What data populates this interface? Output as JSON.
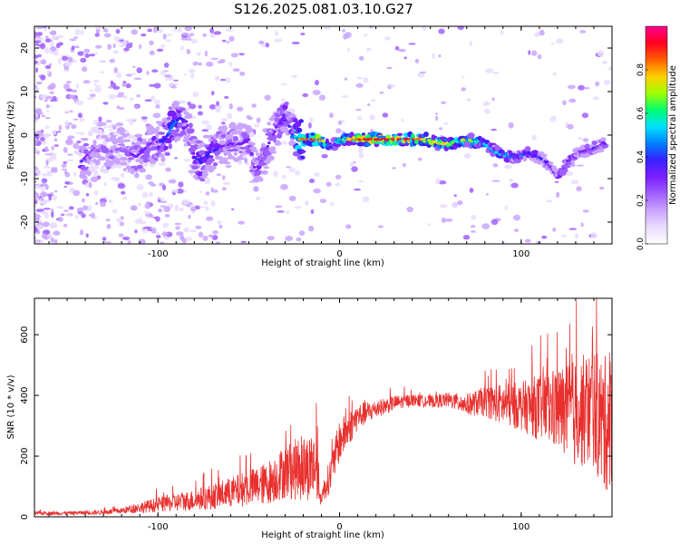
{
  "title": "S126.2025.081.03.10.G27",
  "colors": {
    "snr_line": "#e8302e",
    "spectrogram_palette": [
      "#ffffff",
      "#e9dcff",
      "#c9a4ff",
      "#a060ff",
      "#7a1fff",
      "#3a20ff",
      "#0080ff",
      "#00e0ff",
      "#00ff70",
      "#a0ff00",
      "#ffd000",
      "#ff6000",
      "#ff0020",
      "#ff0090"
    ]
  },
  "chart_data": [
    {
      "type": "heatmap",
      "name": "spectrogram",
      "xlabel": "Height of straight line (km)",
      "ylabel": "Frequency (Hz)",
      "xlim": [
        -168,
        150
      ],
      "ylim": [
        -25,
        25
      ],
      "x_ticks": [
        -100,
        0,
        100
      ],
      "x_tick_labels": [
        "-100",
        "0",
        "100"
      ],
      "y_ticks": [
        -20,
        -10,
        0,
        10,
        20
      ],
      "y_tick_labels": [
        "-20",
        "-10",
        "0",
        "10",
        "20"
      ],
      "colorbar": {
        "label": "Normalized spectral amplitude",
        "range": [
          0,
          1
        ],
        "ticks": [
          0.0,
          0.2,
          0.4,
          0.6,
          0.8
        ],
        "tick_labels": [
          "0.0",
          "0.2",
          "0.4",
          "0.6",
          "0.8"
        ]
      },
      "ridge": {
        "x": [
          -142,
          -135,
          -128,
          -120,
          -112,
          -104,
          -96,
          -92,
          -88,
          -84,
          -80,
          -76,
          -72,
          -66,
          -60,
          -54,
          -50,
          -46,
          -42,
          -38,
          -34,
          -30,
          -26,
          -22,
          -16,
          -10,
          -5,
          0,
          10,
          20,
          30,
          40,
          48,
          55,
          62,
          70,
          80,
          86,
          92,
          98,
          104,
          110,
          116,
          120,
          126,
          132,
          140,
          146
        ],
        "frequency": [
          -6,
          -3,
          -4,
          -3,
          -5,
          -2,
          -1,
          2,
          4,
          3,
          -5,
          -6,
          -4,
          -3,
          -2,
          -2,
          -1,
          -9,
          -5,
          -1,
          2,
          5,
          0,
          -1,
          -1,
          -1,
          -3,
          -1,
          -1,
          -1,
          -1,
          -1,
          -1,
          -2,
          -2,
          -1,
          -2,
          -4,
          -5,
          -5,
          -4,
          -5,
          -7,
          -10,
          -6,
          -4,
          -3,
          -2
        ],
        "amplitude": [
          0.35,
          0.2,
          0.25,
          0.22,
          0.3,
          0.28,
          0.4,
          0.45,
          0.4,
          0.3,
          0.35,
          0.4,
          0.38,
          0.35,
          0.3,
          0.28,
          0.3,
          0.3,
          0.28,
          0.3,
          0.32,
          0.35,
          0.35,
          0.8,
          0.9,
          0.85,
          0.4,
          0.6,
          0.9,
          0.92,
          0.9,
          0.9,
          0.75,
          0.8,
          0.7,
          0.75,
          0.5,
          0.55,
          0.5,
          0.45,
          0.4,
          0.35,
          0.35,
          0.3,
          0.35,
          0.3,
          0.35,
          0.3
        ]
      }
    },
    {
      "type": "line",
      "name": "snr",
      "xlabel": "Height of straight line (km)",
      "ylabel": "SNR (10 * v/v)",
      "xlim": [
        -168,
        150
      ],
      "ylim": [
        0,
        720
      ],
      "x_ticks": [
        -100,
        0,
        100
      ],
      "x_tick_labels": [
        "-100",
        "0",
        "100"
      ],
      "y_ticks": [
        0,
        200,
        400,
        600
      ],
      "y_tick_labels": [
        "0",
        "200",
        "400",
        "600"
      ],
      "envelope": {
        "x": [
          -168,
          -150,
          -130,
          -120,
          -100,
          -80,
          -60,
          -40,
          -30,
          -20,
          -12,
          -11,
          -5,
          0,
          10,
          20,
          30,
          40,
          50,
          60,
          70,
          80,
          90,
          100,
          110,
          120,
          130,
          140,
          145,
          150
        ],
        "mean": [
          12,
          12,
          15,
          20,
          40,
          55,
          80,
          110,
          150,
          160,
          170,
          55,
          140,
          250,
          330,
          355,
          375,
          385,
          380,
          385,
          370,
          380,
          370,
          365,
          360,
          355,
          340,
          360,
          300,
          320
        ],
        "spread": [
          6,
          6,
          8,
          10,
          25,
          35,
          50,
          70,
          90,
          110,
          110,
          20,
          60,
          70,
          45,
          30,
          25,
          20,
          20,
          25,
          35,
          50,
          70,
          80,
          110,
          140,
          180,
          200,
          230,
          220
        ]
      }
    }
  ]
}
